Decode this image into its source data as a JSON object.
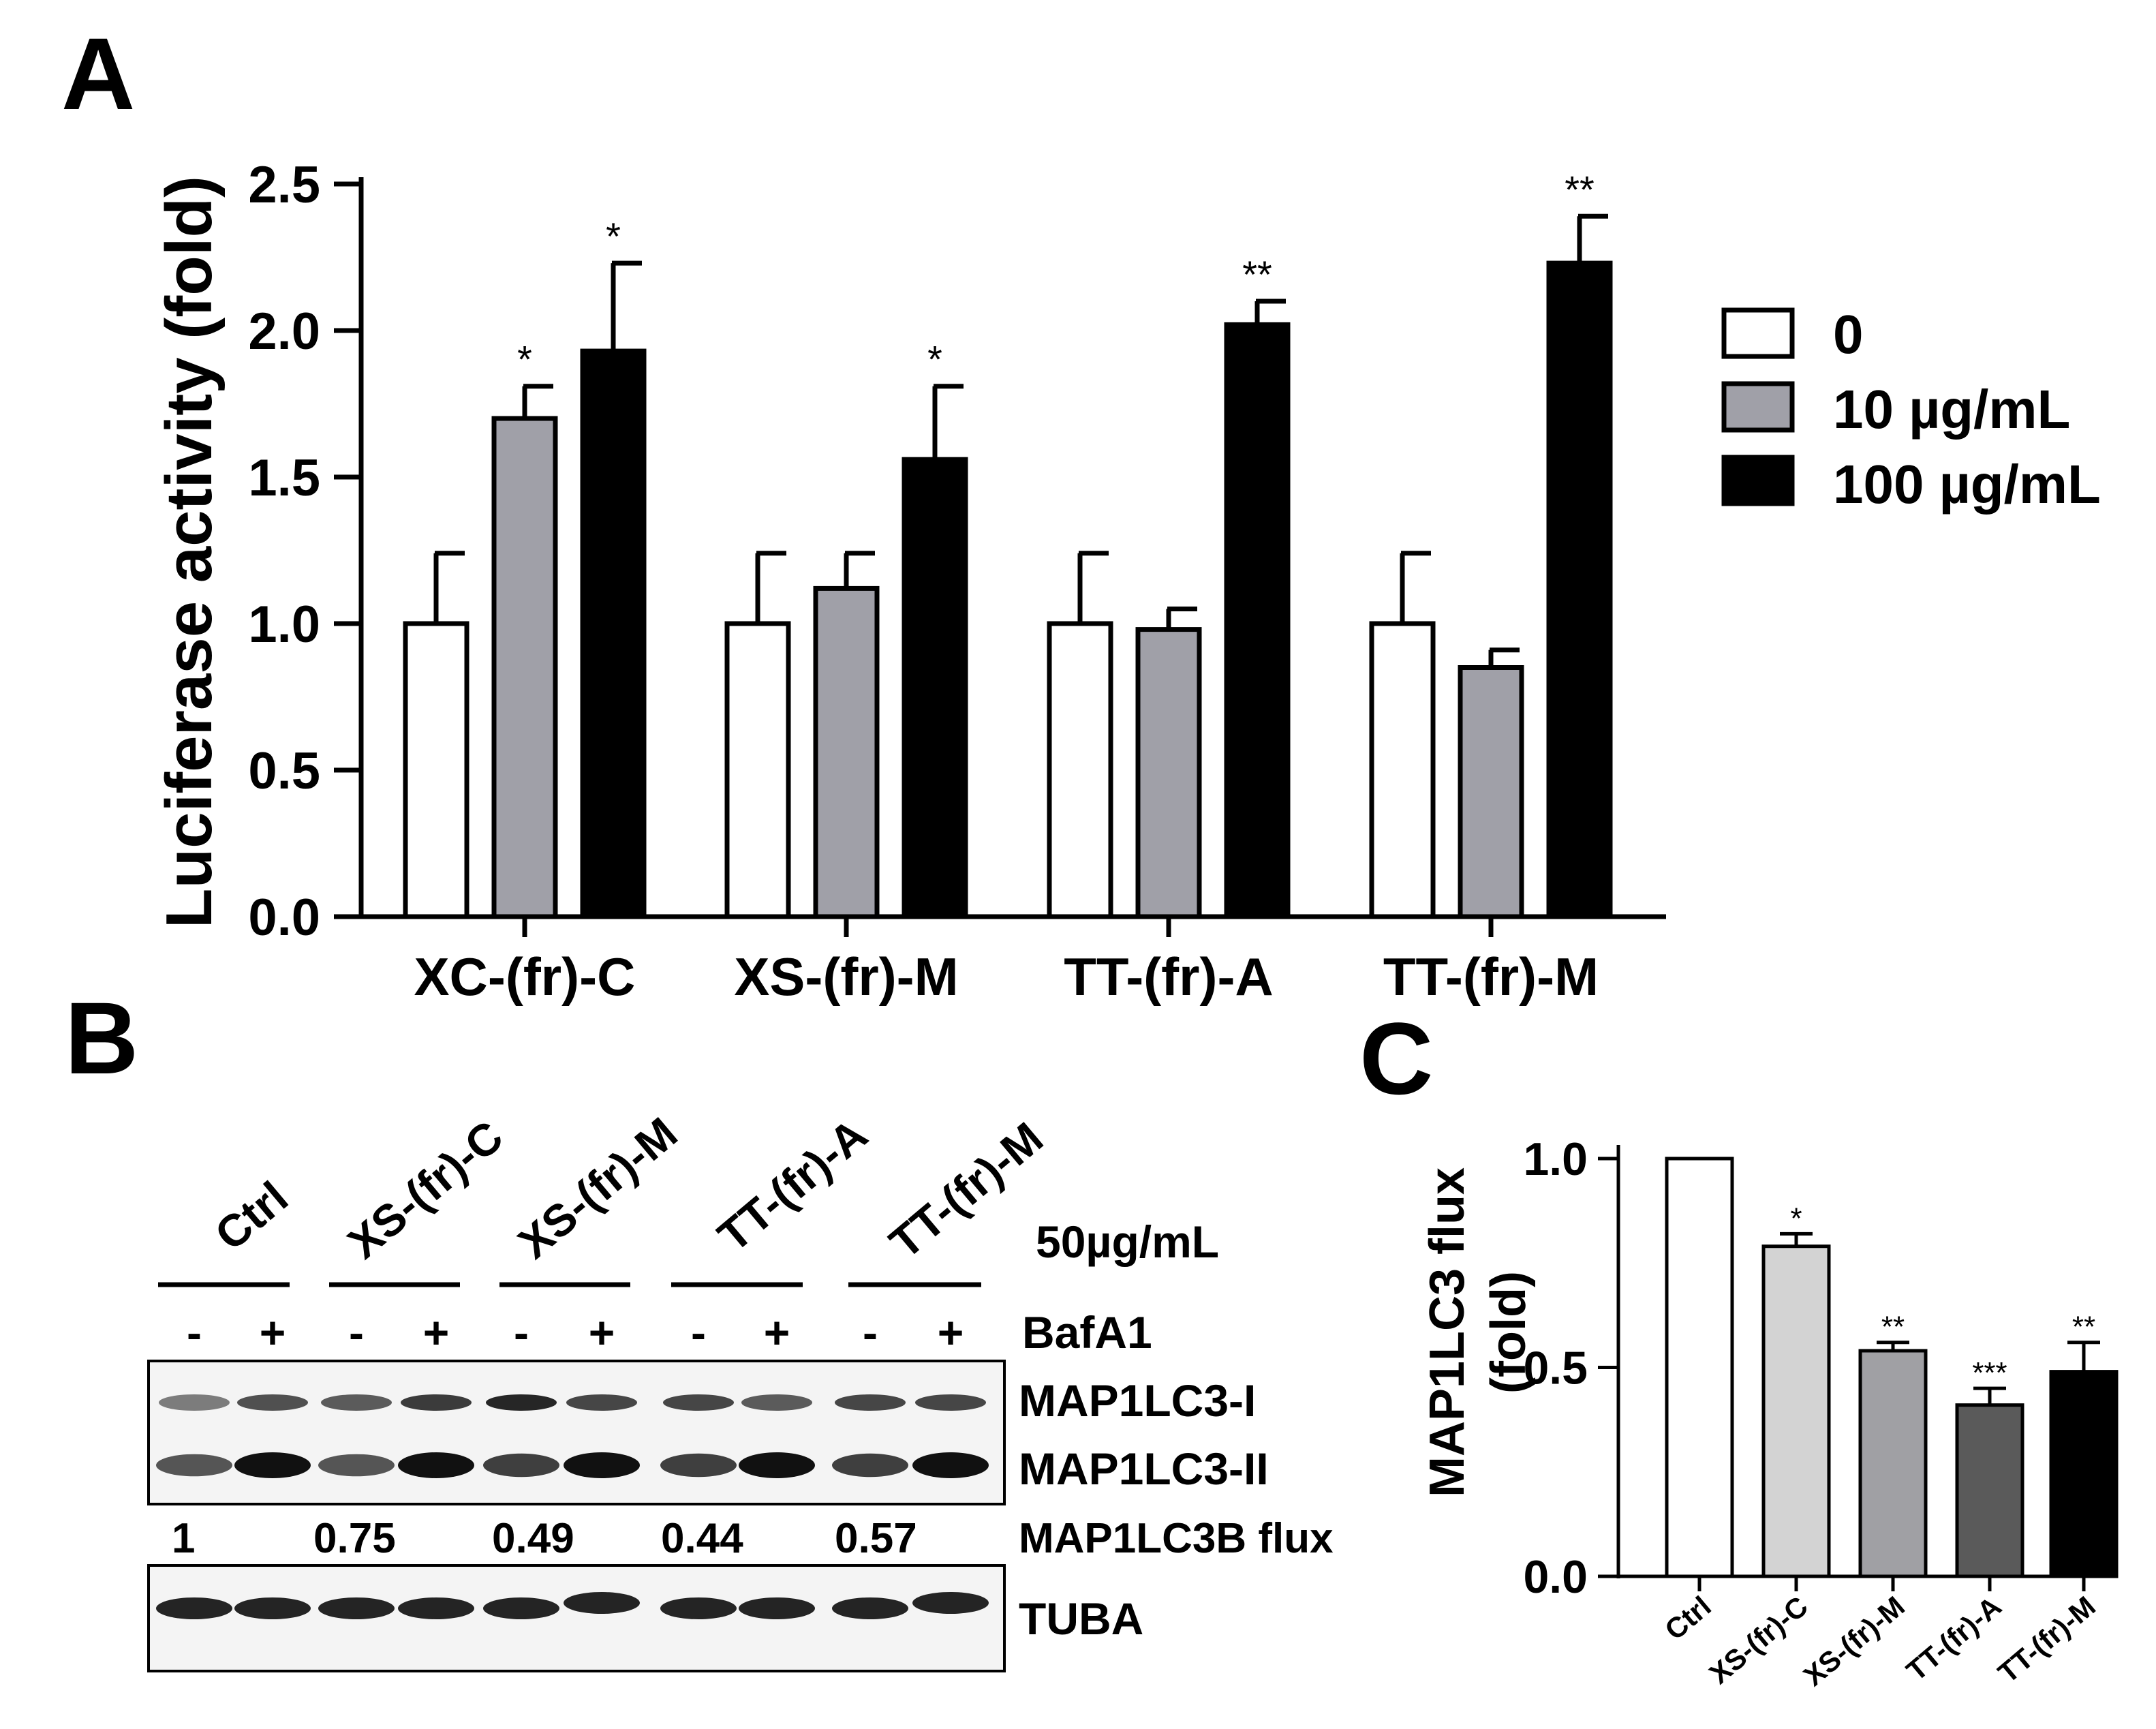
{
  "panel_labels": {
    "a": "A",
    "b": "B",
    "c": "C"
  },
  "chart_data": [
    {
      "panel": "A",
      "type": "bar",
      "ylabel": "Luciferase activity (fold)",
      "xlabel": "",
      "ylim": [
        0,
        2.5
      ],
      "yticks": [
        0.0,
        0.5,
        1.0,
        1.5,
        2.0,
        2.5
      ],
      "ytick_labels": [
        "0.0",
        "0.5",
        "1.0",
        "1.5",
        "2.0",
        "2.5"
      ],
      "categories": [
        "XC-(fr)-C",
        "XS-(fr)-M",
        "TT-(fr)-A",
        "TT-(fr)-M"
      ],
      "series": [
        {
          "name": "0",
          "color": "#ffffff",
          "values": [
            1.0,
            1.0,
            1.0,
            1.0
          ],
          "errors": [
            0.24,
            0.24,
            0.24,
            0.24
          ],
          "significance": [
            "",
            "",
            "",
            ""
          ]
        },
        {
          "name": "10 µg/mL",
          "color": "#a0a0a8",
          "values": [
            1.7,
            1.12,
            0.98,
            0.85
          ],
          "errors": [
            0.11,
            0.12,
            0.07,
            0.06
          ],
          "significance": [
            "*",
            "",
            "",
            ""
          ]
        },
        {
          "name": "100 µg/mL",
          "color": "#000000",
          "values": [
            1.93,
            1.56,
            2.02,
            2.23
          ],
          "errors": [
            0.3,
            0.25,
            0.08,
            0.16
          ],
          "significance": [
            "*",
            "*",
            "**",
            "**"
          ]
        }
      ],
      "legend_position": "right"
    },
    {
      "panel": "C",
      "type": "bar",
      "ylabel_line1": "MAP1LC3 flux",
      "ylabel_line2": "(fold)",
      "ylim": [
        0,
        1.0
      ],
      "yticks": [
        0.0,
        0.5,
        1.0
      ],
      "ytick_labels": [
        "0.0",
        "0.5",
        "1.0"
      ],
      "categories": [
        "Ctrl",
        "XS-(fr)-C",
        "XS-(fr)-M",
        "TT-(fr)-A",
        "TT-(fr)-M"
      ],
      "values": [
        1.0,
        0.79,
        0.54,
        0.41,
        0.49
      ],
      "errors": [
        0.0,
        0.03,
        0.02,
        0.04,
        0.07
      ],
      "significance": [
        "",
        "*",
        "**",
        "***",
        "**"
      ],
      "colors": [
        "#ffffff",
        "#d3d3d3",
        "#a0a0a4",
        "#5a5a5a",
        "#000000"
      ]
    }
  ],
  "blot": {
    "groups": [
      "Ctrl",
      "XS-(fr)-C",
      "XS-(fr)-M",
      "TT-(fr)-A",
      "TT-(fr)-M"
    ],
    "concentration": "50µg/mL",
    "treatment_label": "BafA1",
    "treatment_signs": [
      "-",
      "+",
      "-",
      "+",
      "-",
      "+",
      "-",
      "+",
      "-",
      "+"
    ],
    "bands": [
      "MAP1LC3-I",
      "MAP1LC3-II"
    ],
    "flux_values": [
      "1",
      "0.75",
      "0.49",
      "0.44",
      "0.57"
    ],
    "flux_label": "MAP1LC3B flux",
    "loading_label": "TUBA"
  }
}
